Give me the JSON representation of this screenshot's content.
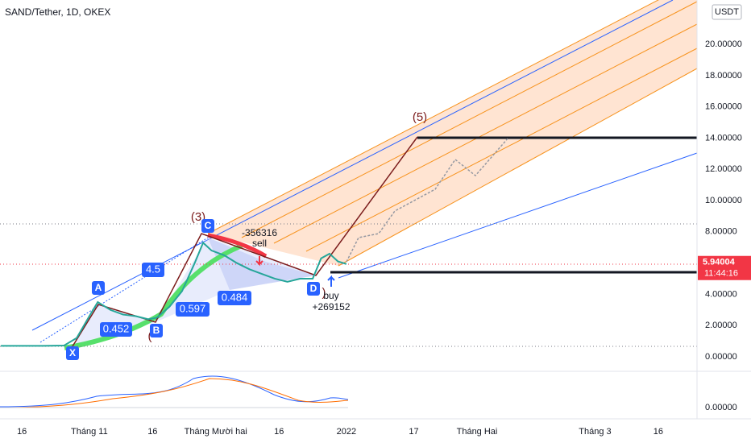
{
  "chart_data": {
    "type": "line",
    "title": "SAND/Tether, 1D, OKEX",
    "currency": "USDT",
    "x": [
      10,
      15,
      20,
      25,
      28,
      31,
      33,
      36,
      39,
      42,
      45,
      47,
      50,
      53,
      56,
      58,
      60,
      63,
      66,
      69,
      72,
      75,
      78,
      81,
      84,
      86,
      88,
      90,
      92
    ],
    "series": [
      {
        "name": "SAND/Tether",
        "color": "#26a69a",
        "values": [
          0.7,
          0.7,
          0.7,
          0.72,
          1.2,
          2.6,
          3.5,
          3.0,
          2.7,
          2.6,
          2.4,
          2.5,
          3.2,
          4.2,
          6.0,
          7.3,
          6.8,
          6.5,
          6.0,
          5.6,
          5.3,
          5.0,
          4.8,
          5.0,
          5.0,
          6.3,
          6.6,
          6.1,
          5.94
        ]
      }
    ],
    "xlim": [
      9.8,
      175.2
    ],
    "xticks": [
      {
        "value": 15,
        "label": "16"
      },
      {
        "value": 31,
        "label": "Tháng 11"
      },
      {
        "value": 46,
        "label": "16"
      },
      {
        "value": 61,
        "label": "Tháng Mười hai"
      },
      {
        "value": 76,
        "label": "16"
      },
      {
        "value": 92,
        "label": "2022"
      },
      {
        "value": 108,
        "label": "17"
      },
      {
        "value": 123,
        "label": "Tháng Hai"
      },
      {
        "value": 151,
        "label": "Tháng 3"
      },
      {
        "value": 166,
        "label": "16"
      }
    ],
    "ylim": [
      -0.88,
      22.84
    ],
    "yticks": [
      {
        "value": 0,
        "label": "0.00000"
      },
      {
        "value": 2,
        "label": "2.00000"
      },
      {
        "value": 4,
        "label": "4.00000"
      },
      {
        "value": 6,
        "label": "6.00000"
      },
      {
        "value": 8,
        "label": "8.00000"
      },
      {
        "value": 10,
        "label": "10.00000"
      },
      {
        "value": 12,
        "label": "12.00000"
      },
      {
        "value": 14,
        "label": "14.00000"
      },
      {
        "value": 16,
        "label": "16.00000"
      },
      {
        "value": 18,
        "label": "18.00000"
      },
      {
        "value": 20,
        "label": "20.00000"
      }
    ],
    "grid": false,
    "last_price": 5.94004,
    "countdown": "11:44:16",
    "indicator_label": "0.00000",
    "annotations": {
      "wave5": "(5)",
      "wave3": "(3)",
      "open_paren": "(",
      "close_paren": ")",
      "a": "A",
      "b": "B",
      "c": "C",
      "d": "D",
      "x": "X",
      "r1": "4.5",
      "r2": "0.452",
      "r3": "0.597",
      "r4": "0.484",
      "sell_qty": "-356316",
      "sell": "sell",
      "buy": "buy",
      "buy_qty": "+269152"
    }
  }
}
